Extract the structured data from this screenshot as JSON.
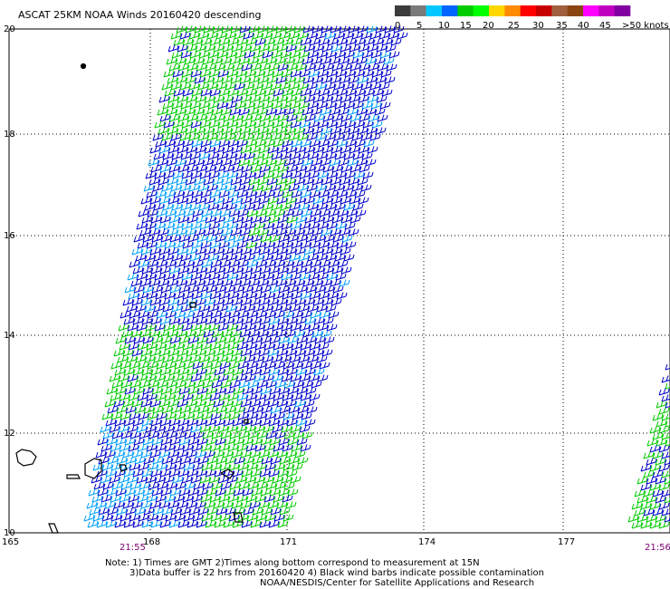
{
  "title": "ASCAT 25KM NOAA Winds 20160420 descending",
  "legend": {
    "labels": [
      "0",
      "5",
      "10",
      "15",
      "20",
      "25",
      "30",
      "35",
      "40",
      "45",
      ">50 knots"
    ],
    "colors": [
      "#3c3c3c",
      "#7a7a7a",
      "#00c8ff",
      "#0064ff",
      "#00cc00",
      "#00ff00",
      "#ffd700",
      "#ff8c00",
      "#ff0000",
      "#c80000",
      "#a06040",
      "#8b4513",
      "#ff00ff",
      "#c000c0",
      "#8000a0"
    ]
  },
  "y_ticks": [
    "20",
    "18",
    "16",
    "14",
    "12",
    "10"
  ],
  "x_ticks": [
    "165",
    "168",
    "171",
    "174",
    "177"
  ],
  "times": [
    "21:55",
    "21:56"
  ],
  "notes": [
    "Note: 1) Times are GMT 2)Times along bottom correspond to measurement at 15N",
    "3)Data buffer is 22 hrs from 20160420 4) Black wind barbs indicate possible contamination",
    "NOAA/NESDIS/Center for Satellite Applications and Research"
  ],
  "barb_colors": {
    "low": "#0000cc",
    "mid": "#00a0ff",
    "high": "#00cc00"
  }
}
